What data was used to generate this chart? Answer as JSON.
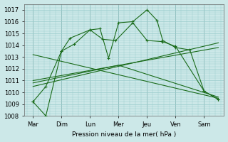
{
  "xlabel": "Pression niveau de la mer( hPa )",
  "x_labels": [
    "Mar",
    "Dim",
    "Lun",
    "Mer",
    "Jeu",
    "Ven",
    "Sam"
  ],
  "x_positions": [
    0,
    1,
    2,
    3,
    4,
    5,
    6
  ],
  "ylim": [
    1008,
    1017.5
  ],
  "yticks": [
    1008,
    1009,
    1010,
    1011,
    1012,
    1013,
    1014,
    1015,
    1016,
    1017
  ],
  "background_color": "#cce8e8",
  "grid_color": "#99cccc",
  "line_color": "#1a6b1a",
  "series": [
    {
      "x": [
        0,
        0.45,
        1.0,
        1.3,
        2.0,
        2.35,
        2.65,
        3.0,
        3.5,
        4.0,
        4.35,
        4.55,
        5.0,
        5.5,
        6.0,
        6.5
      ],
      "y": [
        1009.2,
        1008.0,
        1013.5,
        1014.6,
        1015.3,
        1015.4,
        1012.9,
        1015.9,
        1016.0,
        1017.0,
        1016.1,
        1014.4,
        1013.8,
        1013.6,
        1010.1,
        1009.4
      ],
      "linestyle": "-",
      "marker": "+"
    },
    {
      "x": [
        0,
        0.45,
        1.0,
        1.45,
        2.0,
        2.45,
        2.9,
        3.5,
        4.0,
        4.55,
        5.0,
        6.0,
        6.5
      ],
      "y": [
        1009.2,
        1010.5,
        1013.5,
        1014.1,
        1015.3,
        1014.5,
        1014.4,
        1015.9,
        1014.4,
        1014.3,
        1013.9,
        1010.1,
        1009.4
      ],
      "linestyle": "-",
      "marker": "+"
    },
    {
      "x": [
        0.0,
        6.5
      ],
      "y": [
        1010.5,
        1014.2
      ],
      "linestyle": "-",
      "marker": null
    },
    {
      "x": [
        0.0,
        6.5
      ],
      "y": [
        1013.2,
        1009.5
      ],
      "linestyle": "-",
      "marker": null
    },
    {
      "x": [
        0.0,
        6.5
      ],
      "y": [
        1011.0,
        1013.8
      ],
      "linestyle": "-",
      "marker": null
    },
    {
      "x": [
        0.0,
        3.0,
        6.5
      ],
      "y": [
        1010.8,
        1012.3,
        1009.6
      ],
      "linestyle": "-",
      "marker": null
    }
  ]
}
